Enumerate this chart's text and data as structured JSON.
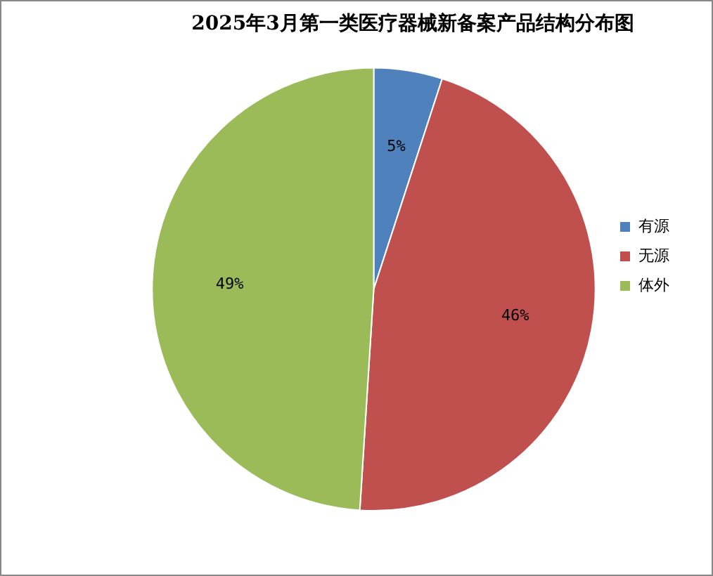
{
  "chart_data": {
    "type": "pie",
    "title": "2025年3月第一类医疗器械新备案产品结构分布图",
    "categories": [
      "有源",
      "无源",
      "体外"
    ],
    "values": [
      5,
      46,
      49
    ],
    "colors": [
      "#4f81bd",
      "#c0504d",
      "#9bbb59"
    ],
    "value_labels": [
      "5%",
      "46%",
      "49%"
    ],
    "legend": "right"
  }
}
